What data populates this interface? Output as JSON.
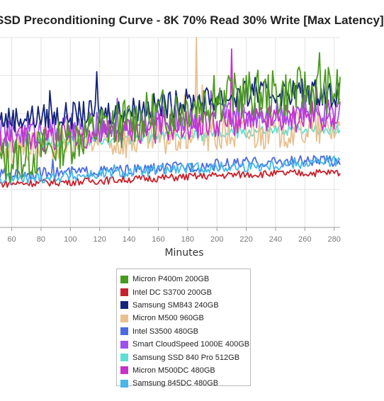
{
  "chart_data": {
    "type": "line",
    "title": "SSD Preconditioning Curve - 8K 70% Read 30% Write [Max Latency]",
    "xlabel": "Minutes",
    "ylabel": "",
    "x_ticks": [
      "60",
      "80",
      "100",
      "120",
      "140",
      "160",
      "180",
      "200",
      "220",
      "240",
      "260",
      "280"
    ],
    "xlim": [
      52,
      284
    ],
    "ylim": [
      0,
      100
    ],
    "grid": true,
    "legend_position": "bottom-center",
    "series": [
      {
        "name": "Micron P400m 200GB",
        "color": "#4a9a1f",
        "points": [
          [
            52,
            34
          ],
          [
            80,
            40
          ],
          [
            100,
            46
          ],
          [
            120,
            52
          ],
          [
            140,
            56
          ],
          [
            160,
            60
          ],
          [
            180,
            64
          ],
          [
            200,
            68
          ],
          [
            220,
            70
          ],
          [
            240,
            70
          ],
          [
            260,
            72
          ],
          [
            284,
            72
          ]
        ],
        "noise": 13,
        "spikes": [
          [
            122,
            62
          ],
          [
            198,
            80
          ],
          [
            208,
            80
          ],
          [
            270,
            92
          ]
        ]
      },
      {
        "name": "Intel DC S3700 200GB",
        "color": "#c8202a",
        "points": [
          [
            52,
            23
          ],
          [
            100,
            24
          ],
          [
            160,
            26
          ],
          [
            220,
            28
          ],
          [
            284,
            29
          ]
        ],
        "noise": 2,
        "spikes": []
      },
      {
        "name": "Samsung SM843 240GB",
        "color": "#13247a",
        "points": [
          [
            52,
            57
          ],
          [
            100,
            59
          ],
          [
            140,
            62
          ],
          [
            180,
            66
          ],
          [
            220,
            70
          ],
          [
            260,
            72
          ],
          [
            284,
            70
          ]
        ],
        "noise": 7,
        "spikes": [
          [
            86,
            72
          ],
          [
            118,
            82
          ],
          [
            172,
            72
          ],
          [
            202,
            72
          ],
          [
            226,
            79
          ],
          [
            260,
            79
          ]
        ]
      },
      {
        "name": "Micron M500 960GB",
        "color": "#e9c08e",
        "points": [
          [
            52,
            42
          ],
          [
            100,
            44
          ],
          [
            140,
            46
          ],
          [
            180,
            48
          ],
          [
            220,
            50
          ],
          [
            260,
            52
          ],
          [
            284,
            52
          ]
        ],
        "noise": 10,
        "spikes": [
          [
            178,
            70
          ],
          [
            186,
            100
          ],
          [
            190,
            75
          ]
        ]
      },
      {
        "name": "Intel S3500 480GB",
        "color": "#4b6be0",
        "points": [
          [
            52,
            28
          ],
          [
            100,
            29
          ],
          [
            140,
            30
          ],
          [
            180,
            32
          ],
          [
            220,
            34
          ],
          [
            260,
            35
          ],
          [
            284,
            35
          ]
        ],
        "noise": 3,
        "spikes": [
          [
            88,
            36
          ],
          [
            200,
            36
          ]
        ]
      },
      {
        "name": "Smart CloudSpeed 1000E 400GB",
        "color": "#a04ff0",
        "points": [
          [
            52,
            50
          ],
          [
            100,
            52
          ],
          [
            140,
            55
          ],
          [
            180,
            58
          ],
          [
            220,
            60
          ],
          [
            260,
            62
          ],
          [
            284,
            62
          ]
        ],
        "noise": 8,
        "spikes": [
          [
            132,
            68
          ],
          [
            196,
            72
          ],
          [
            216,
            74
          ]
        ]
      },
      {
        "name": "Samsung SSD 840 Pro 512GB",
        "color": "#5de0d4",
        "points": [
          [
            52,
            44
          ],
          [
            100,
            45
          ],
          [
            140,
            47
          ],
          [
            180,
            48
          ],
          [
            220,
            50
          ],
          [
            260,
            52
          ],
          [
            284,
            52
          ]
        ],
        "noise": 3,
        "spikes": []
      },
      {
        "name": "Micron M500DC 480GB",
        "color": "#c832c8",
        "points": [
          [
            52,
            46
          ],
          [
            100,
            48
          ],
          [
            140,
            51
          ],
          [
            180,
            54
          ],
          [
            220,
            56
          ],
          [
            260,
            58
          ],
          [
            284,
            60
          ]
        ],
        "noise": 8,
        "spikes": [
          [
            210,
            94
          ],
          [
            268,
            74
          ]
        ]
      },
      {
        "name": "Samsung 845DC 480GB",
        "color": "#45b7ea",
        "points": [
          [
            52,
            25
          ],
          [
            100,
            27
          ],
          [
            140,
            29
          ],
          [
            180,
            31
          ],
          [
            220,
            32
          ],
          [
            260,
            34
          ],
          [
            284,
            35
          ]
        ],
        "noise": 3,
        "spikes": [
          [
            130,
            33
          ]
        ]
      }
    ]
  }
}
